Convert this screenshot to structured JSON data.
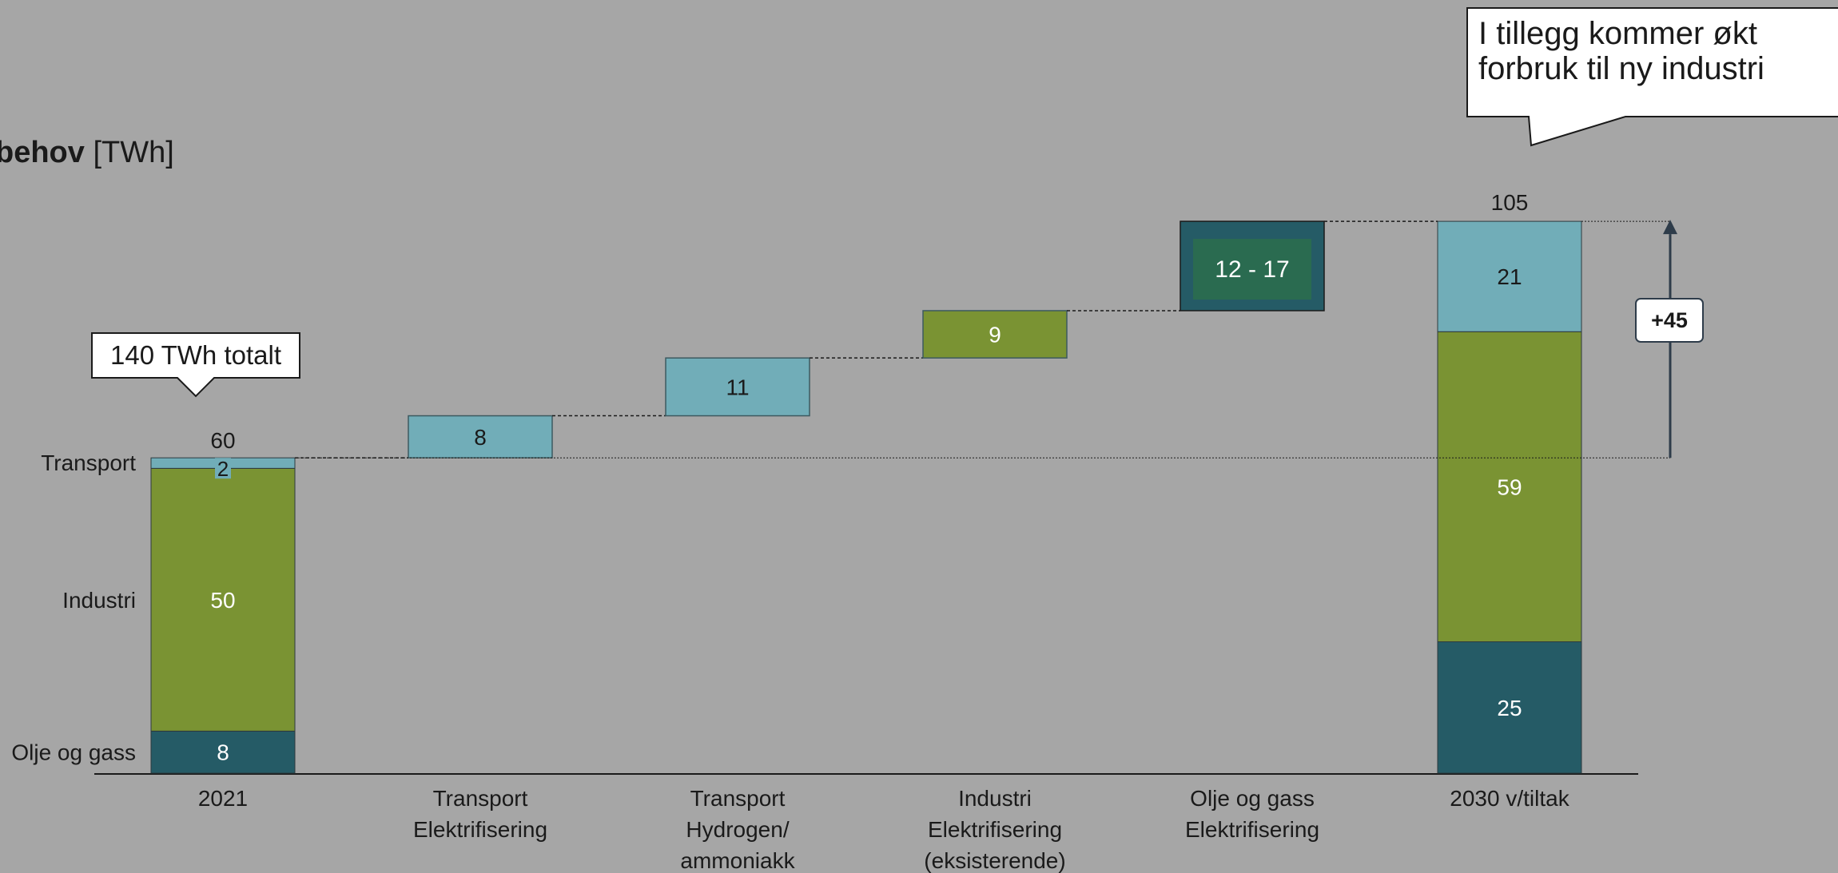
{
  "colors": {
    "background": "#a6a6a6",
    "transport": "#71adb8",
    "industri": "#7a9333",
    "olje_og_gass": "#255b66",
    "olje_og_gass_inner": "#2a6b50",
    "text_dark": "#1a1a1a",
    "text_light": "#ffffff"
  },
  "unit_title": {
    "bold_part": "behov",
    "unit_part": "[TWh]"
  },
  "callouts": {
    "top": "I tillegg kommer økt forbruk til ny industri",
    "total": "140 TWh totalt",
    "delta": "+45"
  },
  "chart_data": {
    "type": "bar",
    "subtype": "waterfall",
    "categories": [
      "2021",
      "Transport Elektrifisering",
      "Transport Hydrogen/ ammoniakk",
      "Industri Elektrifisering (eksisterende)",
      "Olje og gass Elektrifisering",
      "2030 v/tiltak"
    ],
    "category_lines": [
      [
        "2021"
      ],
      [
        "Transport",
        "Elektrifisering"
      ],
      [
        "Transport",
        "Hydrogen/",
        "ammoniakk"
      ],
      [
        "Industri",
        "Elektrifisering",
        "(eksisterende)"
      ],
      [
        "Olje og gass",
        "Elektrifisering"
      ],
      [
        "2030 v/tiltak"
      ]
    ],
    "segment_labels": [
      "Transport",
      "Industri",
      "Olje og gass"
    ],
    "ylim": [
      0,
      105
    ],
    "stacks": [
      {
        "category": "2021",
        "total": 60,
        "segments": [
          {
            "name": "Olje og gass",
            "value": 8,
            "label": "8"
          },
          {
            "name": "Industri",
            "value": 50,
            "label": "50"
          },
          {
            "name": "Transport",
            "value": 2,
            "label": "2"
          }
        ]
      },
      {
        "category": "2030 v/tiltak",
        "total": 105,
        "segments": [
          {
            "name": "Olje og gass",
            "value": 25,
            "label": "25"
          },
          {
            "name": "Industri",
            "value": 59,
            "label": "59"
          },
          {
            "name": "Transport",
            "value": 21,
            "label": "21"
          }
        ]
      }
    ],
    "steps": [
      {
        "category": "Transport Elektrifisering",
        "group": "Transport",
        "start": 60,
        "value": 8,
        "label": "8"
      },
      {
        "category": "Transport Hydrogen/ ammoniakk",
        "group": "Transport",
        "start": 68,
        "value": 11,
        "label": "11"
      },
      {
        "category": "Industri Elektrifisering (eksisterende)",
        "group": "Industri",
        "start": 79,
        "value": 9,
        "label": "9"
      },
      {
        "category": "Olje og gass Elektrifisering",
        "group": "Olje og gass",
        "start": 88,
        "value": 17,
        "range_low": 12,
        "range_high": 17,
        "label": "12 - 17"
      }
    ],
    "annotations": {
      "total_2021": "60",
      "total_2030": "105",
      "increase": "+45",
      "increase_from": 60,
      "increase_to": 105
    },
    "legend": "none",
    "grid": false
  }
}
